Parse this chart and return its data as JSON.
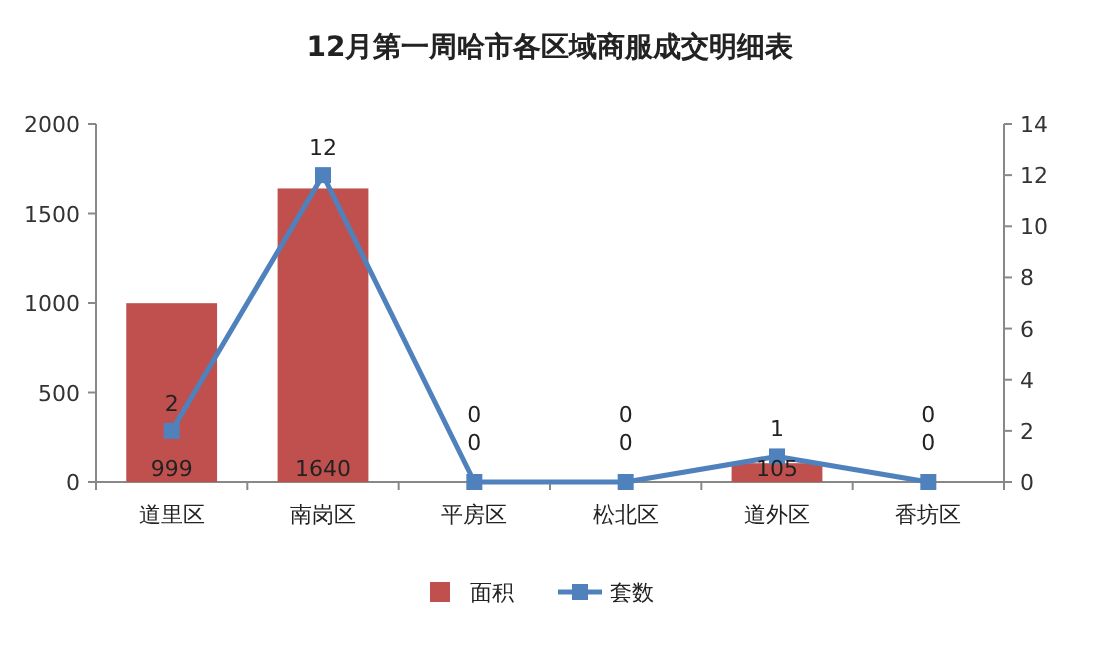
{
  "chart_data": {
    "type": "bar",
    "title": "12月第一周哈市各区域商服成交明细表",
    "categories": [
      "道里区",
      "南岗区",
      "平房区",
      "松北区",
      "道外区",
      "香坊区"
    ],
    "series": [
      {
        "name": "面积",
        "color": "#c0504d",
        "values": [
          999,
          1640,
          0,
          0,
          105,
          0
        ]
      },
      {
        "name": "套数",
        "type": "line",
        "axis": "y2",
        "color": "#4f81bd",
        "marker": "square",
        "values": [
          2,
          12,
          0,
          0,
          1,
          0
        ]
      }
    ],
    "ylim": [
      0,
      2000
    ],
    "yticks": [
      0,
      500,
      1000,
      1500,
      2000
    ],
    "y2lim": [
      0,
      14
    ],
    "y2ticks": [
      0,
      2,
      4,
      6,
      8,
      10,
      12,
      14
    ],
    "data_labels": true,
    "legend": "bottom",
    "grid": false
  }
}
